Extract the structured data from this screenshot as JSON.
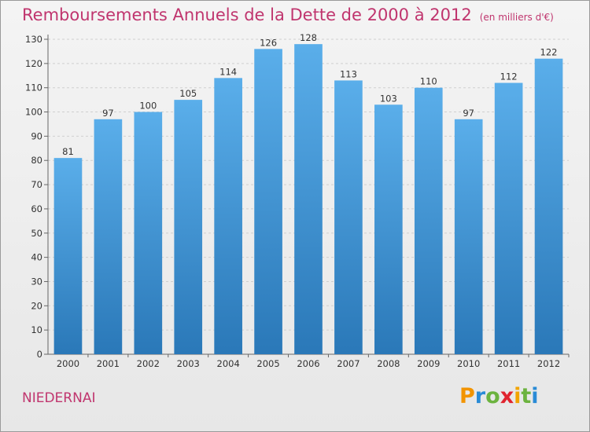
{
  "header": {
    "title": "Remboursements Annuels de la Dette de 2000 à 2012",
    "unit": "(en milliers d'€)"
  },
  "footer": {
    "commune": "NIEDERNAI",
    "brand": {
      "letters": [
        "P",
        "r",
        "o",
        "x",
        "i",
        "t",
        "i"
      ],
      "colors": [
        "#f29400",
        "#2a8bd6",
        "#6cb33f",
        "#e0242f",
        "#f2a400",
        "#6cb33f",
        "#2a8bd6"
      ]
    }
  },
  "chart_data": {
    "type": "bar",
    "categories": [
      "2000",
      "2001",
      "2002",
      "2003",
      "2004",
      "2005",
      "2006",
      "2007",
      "2008",
      "2009",
      "2010",
      "2011",
      "2012"
    ],
    "values": [
      81,
      97,
      100,
      105,
      114,
      126,
      128,
      113,
      103,
      110,
      97,
      112,
      122
    ],
    "title": "Remboursements Annuels de la Dette de 2000 à 2012",
    "subtitle": "(en milliers d'€)",
    "ylim": [
      0,
      130
    ],
    "yticks": [
      0,
      10,
      20,
      30,
      40,
      50,
      60,
      70,
      80,
      90,
      100,
      110,
      120,
      130
    ],
    "grid": true,
    "bar_color": "#3c9be0"
  }
}
